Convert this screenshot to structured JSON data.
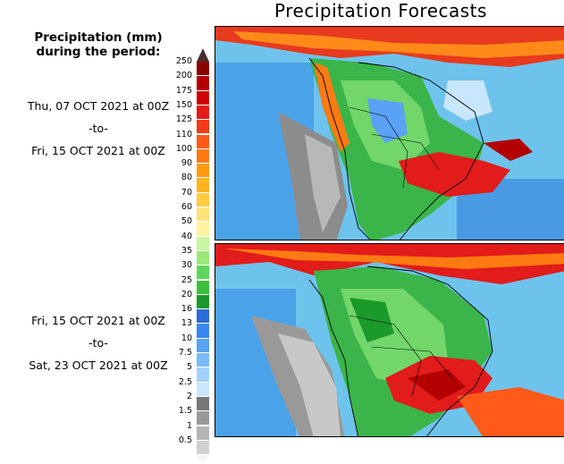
{
  "title": "Precipitation Forecasts",
  "legend": {
    "title_line1": "Precipitation (mm)",
    "title_line2": "during the period:",
    "levels": [
      "250",
      "200",
      "175",
      "150",
      "125",
      "110",
      "100",
      "90",
      "80",
      "70",
      "60",
      "50",
      "40",
      "35",
      "30",
      "25",
      "20",
      "16",
      "13",
      "10",
      "7.5",
      "5",
      "2.5",
      "2",
      "1.5",
      "1",
      "0.5"
    ],
    "colors": [
      "#8a0000",
      "#b30000",
      "#d00000",
      "#e21b1b",
      "#f23a17",
      "#ff5a1a",
      "#ff7a12",
      "#ff9a10",
      "#ffb320",
      "#ffcb40",
      "#ffe37a",
      "#fff2a0",
      "#c8f5a0",
      "#9ae87a",
      "#5fd65a",
      "#3cbf3c",
      "#1a9a2a",
      "#2a6bd8",
      "#3b86ef",
      "#5aa2f5",
      "#7abaf8",
      "#a2d2fb",
      "#c8e6fd",
      "#777777",
      "#999999",
      "#b5b5b5",
      "#d0d0d0"
    ]
  },
  "periods": [
    {
      "start": "Thu, 07 OCT 2021 at 00Z",
      "sep": "-to-",
      "end": "Fri, 15 OCT 2021 at 00Z"
    },
    {
      "start": "Fri, 15 OCT 2021 at 00Z",
      "sep": "-to-",
      "end": "Sat, 23 OCT 2021 at 00Z"
    }
  ]
}
